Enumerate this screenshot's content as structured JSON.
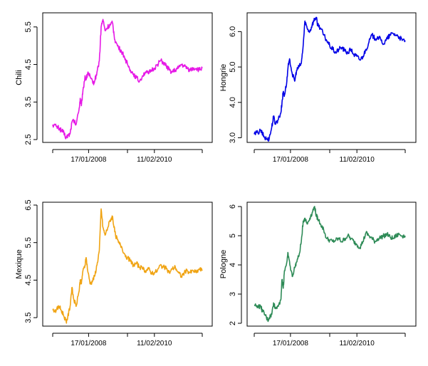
{
  "chart_data": [
    {
      "type": "line",
      "ylabel": "Chili",
      "color": "#e619e6",
      "ylim": [
        2.5,
        5.8
      ],
      "yticks": [
        2.5,
        3.5,
        4.5,
        5.5
      ],
      "ytick_labels": [
        "2.5",
        "3.5",
        "4.5",
        "5.5"
      ],
      "xtick_labels": [
        "17/01/2008",
        "11/02/2010"
      ],
      "x": [
        0,
        12,
        22,
        28,
        35,
        45,
        50,
        58,
        64,
        70,
        78,
        88,
        92,
        96,
        100,
        108,
        112,
        118,
        126,
        134,
        140,
        148,
        156,
        162,
        168,
        175,
        184,
        192,
        200,
        205,
        210,
        220,
        230,
        240,
        250,
        260,
        270,
        280,
        290,
        300,
        310,
        320,
        330,
        340,
        350,
        360,
        370,
        380,
        390,
        400,
        410,
        420,
        430,
        440,
        450,
        460,
        470,
        480,
        490,
        500
      ],
      "values": [
        2.9,
        2.85,
        2.8,
        2.75,
        2.7,
        2.55,
        2.6,
        2.65,
        2.95,
        3.0,
        2.9,
        3.3,
        3.6,
        3.4,
        3.7,
        4.2,
        4.1,
        4.3,
        4.15,
        4.0,
        4.05,
        4.3,
        4.6,
        5.5,
        5.7,
        5.4,
        5.5,
        5.55,
        5.6,
        5.3,
        5.1,
        4.95,
        4.85,
        4.7,
        4.5,
        4.35,
        4.25,
        4.15,
        4.05,
        4.2,
        4.3,
        4.25,
        4.35,
        4.4,
        4.5,
        4.6,
        4.55,
        4.45,
        4.35,
        4.3,
        4.35,
        4.4,
        4.5,
        4.45,
        4.4,
        4.35,
        4.4,
        4.4,
        4.35,
        4.4
      ]
    },
    {
      "type": "line",
      "ylabel": "Hongrie",
      "color": "#0000e6",
      "ylim": [
        2.95,
        6.45
      ],
      "yticks": [
        3.0,
        4.0,
        5.0,
        6.0
      ],
      "ytick_labels": [
        "3.0",
        "4.0",
        "5.0",
        "6.0"
      ],
      "xtick_labels": [
        "17/01/2008",
        "11/02/2010"
      ],
      "x": [
        0,
        12,
        22,
        28,
        35,
        45,
        50,
        58,
        64,
        70,
        78,
        88,
        92,
        96,
        100,
        108,
        112,
        118,
        126,
        134,
        140,
        148,
        156,
        162,
        168,
        175,
        184,
        192,
        200,
        205,
        210,
        220,
        230,
        240,
        250,
        260,
        270,
        280,
        290,
        300,
        310,
        320,
        330,
        340,
        350,
        360,
        370,
        380,
        390,
        400,
        410,
        420,
        430,
        440,
        450,
        460,
        470,
        480,
        490,
        500
      ],
      "values": [
        3.1,
        3.15,
        3.2,
        3.1,
        3.0,
        2.95,
        3.0,
        3.3,
        3.6,
        3.4,
        3.5,
        3.7,
        4.0,
        4.3,
        4.2,
        4.6,
        5.0,
        5.2,
        4.8,
        4.6,
        4.9,
        5.0,
        5.1,
        5.6,
        6.3,
        6.1,
        6.0,
        6.2,
        6.35,
        6.4,
        6.2,
        6.1,
        5.9,
        5.75,
        5.6,
        5.5,
        5.4,
        5.5,
        5.55,
        5.45,
        5.4,
        5.5,
        5.35,
        5.3,
        5.2,
        5.3,
        5.5,
        5.7,
        5.9,
        5.8,
        5.85,
        5.75,
        5.65,
        5.8,
        5.9,
        5.95,
        5.9,
        5.85,
        5.75,
        5.75
      ]
    },
    {
      "type": "line",
      "ylabel": "Mexique",
      "color": "#f0a414",
      "ylim": [
        3.35,
        6.5
      ],
      "yticks": [
        3.5,
        4.5,
        5.5,
        6.5
      ],
      "ytick_labels": [
        "3.5",
        "4.5",
        "5.5",
        "6.5"
      ],
      "xtick_labels": [
        "17/01/2008",
        "11/02/2010"
      ],
      "x": [
        0,
        12,
        22,
        28,
        35,
        45,
        50,
        58,
        64,
        70,
        78,
        88,
        92,
        96,
        100,
        108,
        112,
        118,
        126,
        134,
        140,
        148,
        156,
        162,
        168,
        175,
        184,
        192,
        200,
        205,
        210,
        220,
        230,
        240,
        250,
        260,
        270,
        280,
        290,
        300,
        310,
        320,
        330,
        340,
        350,
        360,
        370,
        380,
        390,
        400,
        410,
        420,
        430,
        440,
        450,
        460,
        470,
        480,
        490,
        500
      ],
      "values": [
        3.7,
        3.7,
        3.8,
        3.7,
        3.6,
        3.4,
        3.5,
        3.8,
        4.3,
        4.0,
        3.8,
        4.2,
        4.5,
        4.4,
        4.7,
        4.9,
        5.1,
        4.7,
        4.4,
        4.5,
        4.6,
        4.9,
        5.3,
        6.4,
        5.9,
        5.7,
        5.9,
        6.1,
        6.2,
        5.9,
        5.7,
        5.5,
        5.4,
        5.2,
        5.1,
        5.0,
        4.9,
        4.95,
        4.85,
        4.8,
        4.75,
        4.8,
        4.7,
        4.7,
        4.75,
        4.9,
        4.85,
        4.8,
        4.7,
        4.8,
        4.85,
        4.7,
        4.6,
        4.7,
        4.75,
        4.7,
        4.75,
        4.7,
        4.8,
        4.75
      ]
    },
    {
      "type": "line",
      "ylabel": "Pologne",
      "color": "#2e8b57",
      "ylim": [
        2.0,
        6.05
      ],
      "yticks": [
        2,
        3,
        4,
        5,
        6
      ],
      "ytick_labels": [
        "2",
        "3",
        "4",
        "5",
        "6"
      ],
      "xtick_labels": [
        "17/01/2008",
        "11/02/2010"
      ],
      "x": [
        0,
        12,
        22,
        28,
        35,
        45,
        50,
        58,
        64,
        70,
        78,
        88,
        92,
        96,
        100,
        108,
        112,
        118,
        126,
        134,
        140,
        148,
        156,
        162,
        168,
        175,
        184,
        192,
        200,
        205,
        210,
        220,
        230,
        240,
        250,
        260,
        270,
        280,
        290,
        300,
        310,
        320,
        330,
        340,
        350,
        360,
        370,
        380,
        390,
        400,
        410,
        420,
        430,
        440,
        450,
        460,
        470,
        480,
        490,
        500
      ],
      "values": [
        2.6,
        2.6,
        2.55,
        2.4,
        2.3,
        2.1,
        2.2,
        2.3,
        2.7,
        2.5,
        2.6,
        2.8,
        3.5,
        3.2,
        3.8,
        4.1,
        4.4,
        4.0,
        3.6,
        3.9,
        4.1,
        4.3,
        4.8,
        5.5,
        5.6,
        5.4,
        5.6,
        5.8,
        6.0,
        5.7,
        5.6,
        5.4,
        5.2,
        4.9,
        4.85,
        4.8,
        4.85,
        4.9,
        4.8,
        4.9,
        5.0,
        4.9,
        4.8,
        4.7,
        4.6,
        4.8,
        5.1,
        5.0,
        4.9,
        4.8,
        4.9,
        4.95,
        5.0,
        5.05,
        4.95,
        4.9,
        5.0,
        5.05,
        5.0,
        5.0
      ]
    }
  ]
}
